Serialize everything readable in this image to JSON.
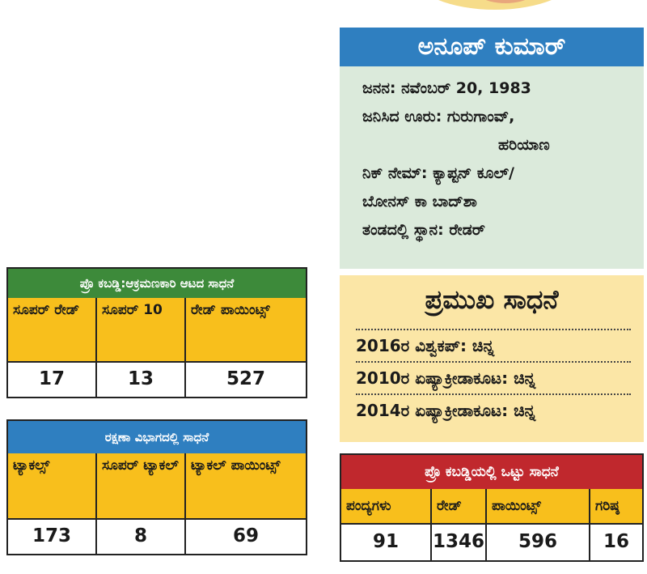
{
  "profile": {
    "name": "ಅನೂಪ್ ಕುಮಾರ್",
    "birth": "ಜನನ: ನವೆಂಬರ್ 20, 1983",
    "hometown": "ಜನಿಸಿದ ಊರು: ಗುರುಗಾಂವ್,",
    "state": "ಹರಿಯಾಣ",
    "nickname": "ನಿಕ್ ನೇಮ್: ಕ್ಯಾಪ್ಟನ್ ಕೂಲ್/",
    "nickname2": "ಬೋನಸ್ ಕಾ ಬಾದ್‌ಶಾ",
    "position": "ತಂಡದಲ್ಲಿ ಸ್ಥಾನ: ರೇಡರ್"
  },
  "achievements": {
    "title": "ಪ್ರಮುಖ ಸಾಧನೆ",
    "items": [
      "2016ರ ವಿಶ್ವಕಪ್: ಚಿನ್ನ",
      "2010ರ ಏಷ್ಯಾಕ್ರೀಡಾಕೂಟ: ಚಿನ್ನ",
      "2014ರ ಏಷ್ಯಾಕ್ರೀಡಾಕೂಟ: ಚಿನ್ನ"
    ]
  },
  "attack_table": {
    "title": "ಪ್ರೊ ಕಬಡ್ಡಿ:ಆಕ್ರಮಣಕಾರಿ ಆಟದ ಸಾಧನೆ",
    "headers": [
      "ಸೂಪರ್ ರೇಡ್",
      "ಸೂಪರ್ 10",
      "ರೇಡ್ ಪಾಯಿಂಟ್ಸ್"
    ],
    "values": [
      "17",
      "13",
      "527"
    ]
  },
  "defence_table": {
    "title": "ರಕ್ಷಣಾ ವಿಭಾಗದಲ್ಲಿ ಸಾಧನೆ",
    "headers": [
      "ಟ್ಯಾಕಲ್ಸ್",
      "ಸೂಪರ್ ಟ್ಯಾಕಲ್",
      "ಟ್ಯಾಕಲ್ ಪಾಯಿಂಟ್ಸ್"
    ],
    "values": [
      "173",
      "8",
      "69"
    ]
  },
  "total_table": {
    "title": "ಪ್ರೊ ಕಬಡ್ಡಿಯಲ್ಲಿ ಒಟ್ಟು ಸಾಧನೆ",
    "headers": [
      "ಪಂದ್ಯಗಳು",
      "ರೇಡ್",
      "ಪಾಯಿಂಟ್ಸ್",
      "ಗರಿಷ್ಠ"
    ],
    "values": [
      "91",
      "1346",
      "596",
      "16"
    ]
  },
  "colors": {
    "profile_header": "#2f7fc0",
    "profile_bg": "#dbeadb",
    "achievement_bg": "#fbe6a6",
    "table_header_cells": "#f8bf1c",
    "attack_title": "#3d8a3a",
    "defence_title": "#2f7fc0",
    "total_title": "#c0282d"
  }
}
